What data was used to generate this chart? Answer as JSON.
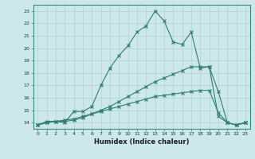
{
  "xlabel": "Humidex (Indice chaleur)",
  "ylabel": "",
  "bg_color": "#cce8e8",
  "grid_color": "#b0d0d0",
  "line_color": "#2e7d6e",
  "x_values": [
    0,
    1,
    2,
    3,
    4,
    5,
    6,
    7,
    8,
    9,
    10,
    11,
    12,
    13,
    14,
    15,
    16,
    17,
    18,
    19,
    20,
    21,
    22,
    23
  ],
  "line1": [
    13.8,
    14.1,
    14.1,
    14.0,
    14.9,
    14.9,
    15.3,
    17.0,
    18.4,
    19.4,
    20.2,
    21.3,
    21.8,
    23.0,
    22.2,
    20.5,
    20.3,
    21.3,
    18.4,
    18.5,
    14.5,
    14.0,
    13.8,
    14.0
  ],
  "line2": [
    13.8,
    14.0,
    14.1,
    14.1,
    14.2,
    14.4,
    14.7,
    15.0,
    15.3,
    15.7,
    16.1,
    16.5,
    16.9,
    17.3,
    17.6,
    17.9,
    18.2,
    18.5,
    18.5,
    18.5,
    16.5,
    14.0,
    13.8,
    14.0
  ],
  "line3": [
    13.8,
    14.0,
    14.1,
    14.2,
    14.3,
    14.5,
    14.7,
    14.9,
    15.1,
    15.3,
    15.5,
    15.7,
    15.9,
    16.1,
    16.2,
    16.3,
    16.4,
    16.5,
    16.6,
    16.6,
    14.8,
    14.0,
    13.8,
    14.0
  ],
  "ylim": [
    13.5,
    23.5
  ],
  "yticks": [
    14,
    15,
    16,
    17,
    18,
    19,
    20,
    21,
    22,
    23
  ],
  "xticks": [
    0,
    1,
    2,
    3,
    4,
    5,
    6,
    7,
    8,
    9,
    10,
    11,
    12,
    13,
    14,
    15,
    16,
    17,
    18,
    19,
    20,
    21,
    22,
    23
  ],
  "marker": "x",
  "markersize": 3,
  "linewidth": 0.8
}
